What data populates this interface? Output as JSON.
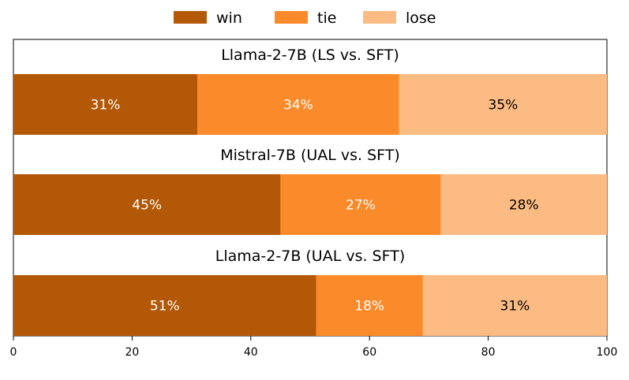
{
  "chart_data": {
    "type": "bar",
    "orientation": "horizontal-stacked",
    "categories": [
      "Llama-2-7B (LS vs. SFT)",
      "Mistral-7B (UAL vs. SFT)",
      "Llama-2-7B (UAL vs. SFT)"
    ],
    "series": [
      {
        "name": "win",
        "values": [
          31,
          45,
          51
        ],
        "labels": [
          "31%",
          "45%",
          "51%"
        ],
        "color": "#b35806",
        "label_color": "#ffffff"
      },
      {
        "name": "tie",
        "values": [
          34,
          27,
          18
        ],
        "labels": [
          "34%",
          "27%",
          "18%"
        ],
        "color": "#fb8a2a",
        "label_color": "#ffffff"
      },
      {
        "name": "lose",
        "values": [
          35,
          28,
          31
        ],
        "labels": [
          "35%",
          "28%",
          "31%"
        ],
        "color": "#fdbb84",
        "label_color": "#000000"
      }
    ],
    "xlim": [
      0,
      100
    ],
    "xticks": [
      0,
      20,
      40,
      60,
      80,
      100
    ],
    "xlabel": "",
    "ylabel": "",
    "grid": false,
    "legend": "top-center"
  }
}
